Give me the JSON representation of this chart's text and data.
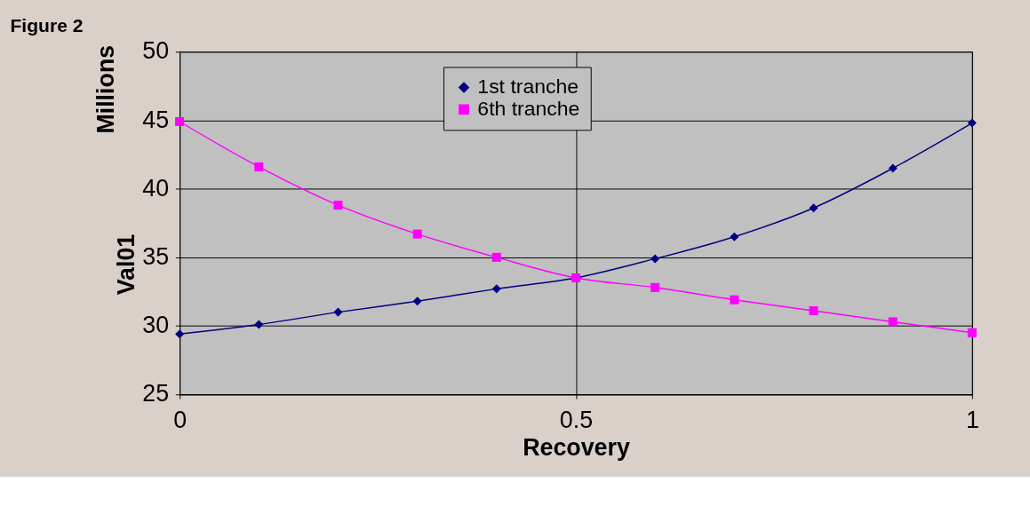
{
  "chart_data": {
    "type": "line",
    "title": "Figure 2",
    "xlabel": "Recovery",
    "ylabel": "Val01",
    "annotations": [
      "Millions"
    ],
    "x": [
      0,
      0.1,
      0.2,
      0.3,
      0.4,
      0.5,
      0.6,
      0.7,
      0.8,
      0.9,
      1
    ],
    "series": [
      {
        "name": "1st tranche",
        "color": "#000080",
        "marker": "diamond",
        "values": [
          29.4,
          30.1,
          31.0,
          31.8,
          32.7,
          33.5,
          34.9,
          36.5,
          38.6,
          41.5,
          44.8
        ]
      },
      {
        "name": "6th tranche",
        "color": "#ff00ff",
        "marker": "square",
        "values": [
          44.9,
          41.6,
          38.8,
          36.7,
          35.0,
          33.5,
          32.8,
          31.9,
          31.1,
          30.3,
          29.5
        ]
      }
    ],
    "xlim": [
      0,
      1
    ],
    "xticks": [
      0,
      0.5,
      1
    ],
    "ylim": [
      25,
      50
    ],
    "yticks": [
      25,
      30,
      35,
      40,
      45,
      50
    ],
    "grid": true,
    "legend": "top",
    "line_style": "solid"
  }
}
